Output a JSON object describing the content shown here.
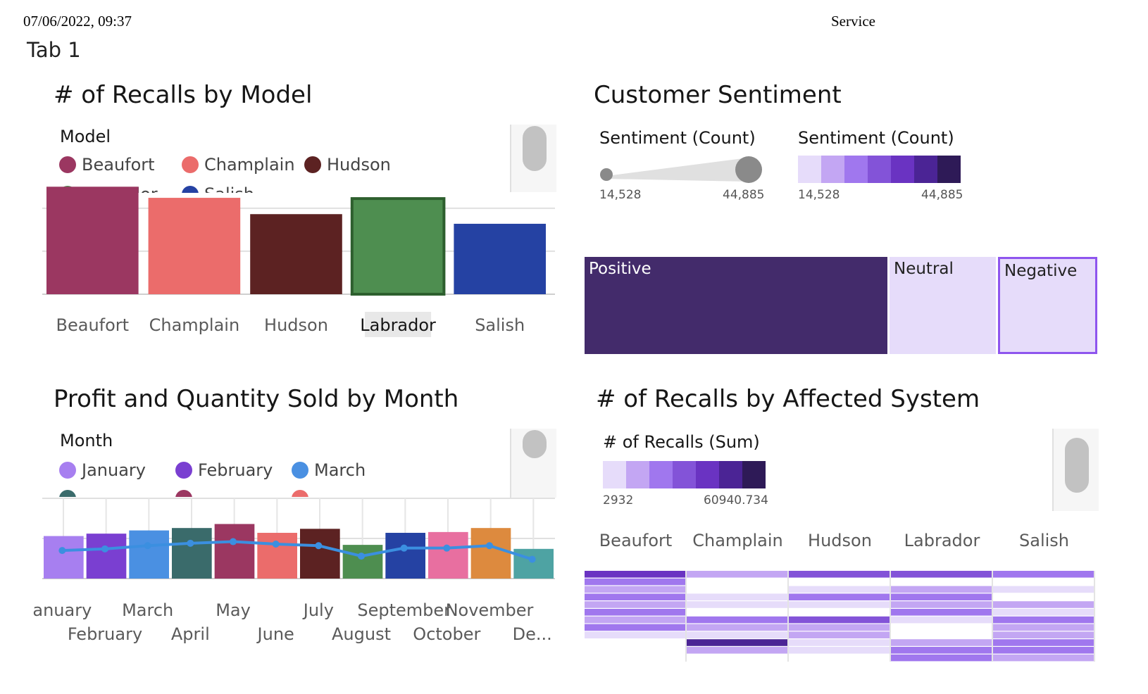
{
  "header": {
    "timestamp": "07/06/2022, 09:37",
    "site": "Service"
  },
  "tab_title": "Tab 1",
  "colors": {
    "purple_scale": [
      "#e6dcfa",
      "#c3a6f3",
      "#a077ee",
      "#8353d8",
      "#6a33c2",
      "#4b2495",
      "#2e1a57"
    ]
  },
  "chart_data": [
    {
      "id": "recalls_by_model",
      "type": "bar",
      "title": "# of Recalls by Model",
      "legend_title": "Model",
      "legend_visible": [
        "Beaufort",
        "Champlain",
        "Hudson"
      ],
      "legend_partial": [
        "Labrador",
        "Salish"
      ],
      "categories": [
        "Beaufort",
        "Champlain",
        "Hudson",
        "Labrador",
        "Salish"
      ],
      "values": [
        145,
        130,
        108,
        129,
        95
      ],
      "colors": [
        "#9b3761",
        "#eb6c6b",
        "#5c2222",
        "#4e8e50",
        "#2542a3"
      ],
      "highlighted": "Labrador",
      "ylim": [
        0,
        150
      ],
      "grid": true
    },
    {
      "id": "customer_sentiment",
      "type": "treemap",
      "title": "Customer Sentiment",
      "size_legend": {
        "title": "Sentiment (Count)",
        "min_label": "14,528",
        "max_label": "44,885"
      },
      "color_legend": {
        "title": "Sentiment (Count)",
        "min_label": "14,528",
        "max_label": "44,885"
      },
      "items": [
        {
          "label": "Positive",
          "value": 44885,
          "color": "#432b6b"
        },
        {
          "label": "Neutral",
          "value": 16000,
          "color": "#e6dcfa"
        },
        {
          "label": "Negative",
          "value": 14528,
          "color": "#e6dcfa"
        }
      ],
      "highlighted": "Negative"
    },
    {
      "id": "profit_qty_by_month",
      "type": "bar",
      "title": "Profit and Quantity Sold by Month",
      "legend_title": "Month",
      "legend_visible": [
        "January",
        "February",
        "March"
      ],
      "categories": [
        "January",
        "February",
        "March",
        "April",
        "May",
        "June",
        "July",
        "August",
        "September",
        "October",
        "November",
        "December"
      ],
      "tick_labels": [
        "anuary",
        "February",
        "March",
        "April",
        "May",
        "June",
        "July",
        "August",
        "September",
        "October",
        "November",
        "De..."
      ],
      "bar_values": [
        53,
        56,
        60,
        63,
        68,
        57,
        62,
        42,
        57,
        58,
        63,
        37
      ],
      "line_values": [
        35,
        37,
        41,
        44,
        46,
        43,
        41,
        28,
        38,
        38,
        41,
        24
      ],
      "colors": [
        "#a77ff0",
        "#7a3fd1",
        "#4a90e2",
        "#3a6b6b",
        "#9b3761",
        "#eb6c6b",
        "#5c2222",
        "#4e8e50",
        "#2542a3",
        "#e86fa0",
        "#dd8a3e",
        "#4ea3a3"
      ],
      "line_color": "#3b8fe0",
      "ylim": [
        0,
        100
      ],
      "grid": true
    },
    {
      "id": "recalls_by_system",
      "type": "heatmap",
      "title": "# of Recalls by Affected System",
      "color_legend": {
        "title": "# of Recalls (Sum)",
        "min_label": "2932",
        "max_label": "60940.734"
      },
      "columns": [
        "Beaufort",
        "Champlain",
        "Hudson",
        "Labrador",
        "Salish"
      ],
      "levels": [
        [
          5,
          3,
          2,
          3,
          2,
          3,
          2,
          3,
          1,
          0,
          0,
          0
        ],
        [
          2,
          0,
          0,
          1,
          1,
          0,
          3,
          2,
          1,
          6,
          2,
          0
        ],
        [
          4,
          0,
          1,
          3,
          1,
          0,
          4,
          2,
          2,
          1,
          1,
          0
        ],
        [
          4,
          0,
          2,
          3,
          2,
          3,
          1,
          0,
          0,
          2,
          3,
          3
        ],
        [
          3,
          0,
          1,
          0,
          2,
          1,
          3,
          2,
          2,
          3,
          3,
          2
        ]
      ]
    }
  ]
}
